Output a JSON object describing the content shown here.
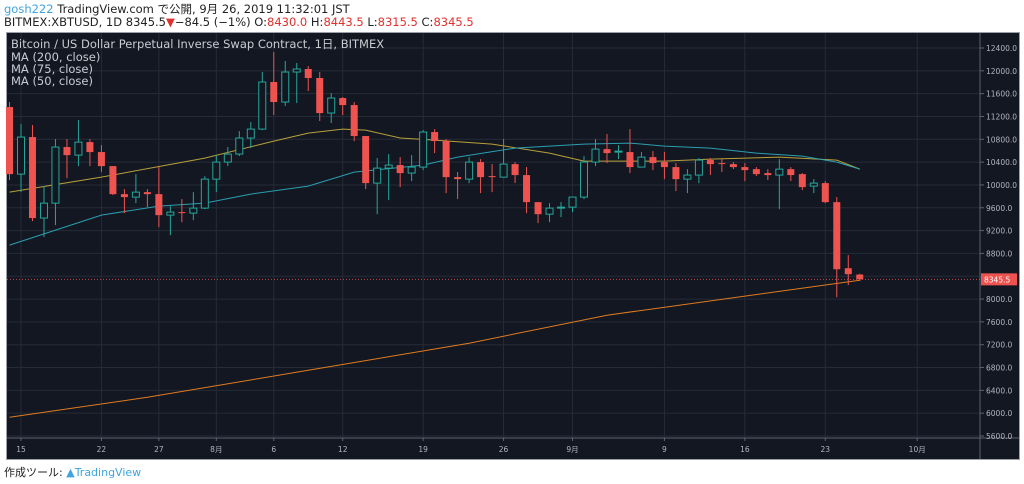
{
  "header": {
    "user": "gosh222",
    "published": "TradingView.com で公開, 9月 26, 2019 11:32:01 JST",
    "symbol_line": "BITMEX:XBTUSD, 1D 8345.5",
    "down_arrow": "▼",
    "change": "−84.5 (−1%)",
    "o_label": " O:",
    "o_value": "8430.0",
    "h_label": " H:",
    "h_value": "8443.5",
    "l_label": " L:",
    "l_value": "8315.5",
    "c_label": " C:",
    "c_value": "8345.5"
  },
  "legend": {
    "title": "Bitcoin / US Dollar Perpetual Inverse Swap Contract, 1日, BITMEX",
    "ma200": "MA (200, close)",
    "ma75": "MA (75, close)",
    "ma50": "MA (50, close)"
  },
  "footer": {
    "made_with": "作成ツール:",
    "brand": "TradingView"
  },
  "colors": {
    "up": "#26a69a",
    "down": "#ef5350",
    "ma200": "#e07b1f",
    "ma75": "#b8a03a",
    "ma50": "#2a9fb0",
    "bg": "#131722"
  },
  "chart_data": {
    "type": "candlestick",
    "title": "Bitcoin / US Dollar Perpetual Inverse Swap Contract, 1日, BITMEX",
    "ylim": [
      5600,
      12400
    ],
    "yticks": [
      "12400.0",
      "12000.0",
      "11600.0",
      "11200.0",
      "10800.0",
      "10400.0",
      "10000.0",
      "9600.0",
      "9200.0",
      "8800.0",
      "8000.0",
      "7600.0",
      "7200.0",
      "6800.0",
      "6400.0",
      "6000.0",
      "5600.0"
    ],
    "ytick_values": [
      12400,
      12000,
      11600,
      11200,
      10800,
      10400,
      10000,
      9600,
      9200,
      8800,
      8000,
      7600,
      7200,
      6800,
      6400,
      6000,
      5600
    ],
    "last_price_label": "8345.5",
    "last_price": 8345.5,
    "xticks": [
      {
        "label": "15",
        "index": 1
      },
      {
        "label": "22",
        "index": 8
      },
      {
        "label": "27",
        "index": 13
      },
      {
        "label": "8月",
        "index": 18
      },
      {
        "label": "6",
        "index": 23
      },
      {
        "label": "12",
        "index": 29
      },
      {
        "label": "19",
        "index": 36
      },
      {
        "label": "26",
        "index": 43
      },
      {
        "label": "9月",
        "index": 49
      },
      {
        "label": "9",
        "index": 57
      },
      {
        "label": "16",
        "index": 64
      },
      {
        "label": "23",
        "index": 71
      },
      {
        "label": "10月",
        "index": 79
      }
    ],
    "ohlc": [
      [
        11365,
        11453,
        10085,
        10190
      ],
      [
        10190,
        11067,
        9874,
        10839
      ],
      [
        10839,
        11050,
        9366,
        9420
      ],
      [
        9420,
        9980,
        9085,
        9681
      ],
      [
        9681,
        10804,
        9296,
        10664
      ],
      [
        10664,
        10804,
        10120,
        10523
      ],
      [
        10523,
        11137,
        10330,
        10751
      ],
      [
        10751,
        10804,
        10330,
        10576
      ],
      [
        10576,
        10699,
        10225,
        10330
      ],
      [
        10330,
        10330,
        9822,
        9839
      ],
      [
        9839,
        9927,
        9506,
        9787
      ],
      [
        9787,
        10190,
        9681,
        9874
      ],
      [
        9874,
        9927,
        9611,
        9839
      ],
      [
        9839,
        10313,
        9261,
        9471
      ],
      [
        9471,
        9629,
        9120,
        9524
      ],
      [
        9524,
        9752,
        9348,
        9506
      ],
      [
        9506,
        9874,
        9383,
        9594
      ],
      [
        9594,
        10155,
        9576,
        10102
      ],
      [
        10102,
        10523,
        9874,
        10401
      ],
      [
        10401,
        10664,
        10330,
        10541
      ],
      [
        10541,
        10944,
        10506,
        10822
      ],
      [
        10822,
        11102,
        10646,
        10979
      ],
      [
        10979,
        11979,
        10962,
        11804
      ],
      [
        11804,
        12330,
        11225,
        11453
      ],
      [
        11453,
        12172,
        11383,
        11979
      ],
      [
        11979,
        12137,
        11435,
        12032
      ],
      [
        12032,
        12084,
        11646,
        11874
      ],
      [
        11874,
        11979,
        11120,
        11260
      ],
      [
        11260,
        11611,
        11085,
        11523
      ],
      [
        11523,
        11541,
        11225,
        11400
      ],
      [
        11400,
        11453,
        10769,
        10857
      ],
      [
        10857,
        10857,
        9927,
        10032
      ],
      [
        10032,
        10471,
        9488,
        10295
      ],
      [
        10295,
        10541,
        9734,
        10348
      ],
      [
        10348,
        10488,
        9962,
        10208
      ],
      [
        10208,
        10523,
        10067,
        10313
      ],
      [
        10313,
        10962,
        10260,
        10927
      ],
      [
        10927,
        10979,
        10558,
        10769
      ],
      [
        10769,
        10804,
        9857,
        10137
      ],
      [
        10137,
        10225,
        9752,
        10102
      ],
      [
        10102,
        10488,
        10032,
        10401
      ],
      [
        10401,
        10453,
        9857,
        10137
      ],
      [
        10155,
        10365,
        9874,
        10137
      ],
      [
        10137,
        10804,
        10137,
        10365
      ],
      [
        10365,
        10401,
        10032,
        10173
      ],
      [
        10173,
        10313,
        9506,
        9699
      ],
      [
        9699,
        9699,
        9331,
        9488
      ],
      [
        9488,
        9681,
        9348,
        9594
      ],
      [
        9594,
        9699,
        9436,
        9611
      ],
      [
        9611,
        9787,
        9524,
        9787
      ],
      [
        9787,
        10506,
        9752,
        10401
      ],
      [
        10401,
        10804,
        10330,
        10628
      ],
      [
        10628,
        10892,
        10383,
        10558
      ],
      [
        10576,
        10699,
        10453,
        10593
      ],
      [
        10576,
        10979,
        10208,
        10313
      ],
      [
        10313,
        10576,
        10313,
        10488
      ],
      [
        10488,
        10593,
        10260,
        10383
      ],
      [
        10401,
        10576,
        10102,
        10313
      ],
      [
        10313,
        10383,
        9892,
        10102
      ],
      [
        10102,
        10277,
        9857,
        10173
      ],
      [
        10173,
        10471,
        10032,
        10436
      ],
      [
        10436,
        10471,
        10173,
        10365
      ],
      [
        10383,
        10453,
        10225,
        10365
      ],
      [
        10365,
        10401,
        10277,
        10313
      ],
      [
        10313,
        10383,
        10067,
        10260
      ],
      [
        10277,
        10313,
        10155,
        10190
      ],
      [
        10208,
        10277,
        10085,
        10173
      ],
      [
        10173,
        10453,
        9576,
        10277
      ],
      [
        10277,
        10313,
        10067,
        10173
      ],
      [
        10190,
        10208,
        9909,
        9962
      ],
      [
        9980,
        10102,
        9857,
        10032
      ],
      [
        10032,
        10067,
        9681,
        9699
      ],
      [
        9699,
        9787,
        8033,
        8523
      ],
      [
        8541,
        8770,
        8243,
        8436
      ],
      [
        8430,
        8443.5,
        8315.5,
        8345.5
      ]
    ],
    "series": [
      {
        "name": "MA (200, close)",
        "points": [
          [
            0,
            5928
          ],
          [
            12,
            6279
          ],
          [
            26,
            6752
          ],
          [
            40,
            7226
          ],
          [
            52,
            7717
          ],
          [
            74,
            8331
          ]
        ]
      },
      {
        "name": "MA (75, close)",
        "points": [
          [
            0,
            9874
          ],
          [
            8,
            10137
          ],
          [
            17,
            10471
          ],
          [
            23,
            10769
          ],
          [
            26,
            10909
          ],
          [
            29,
            10979
          ],
          [
            31,
            10962
          ],
          [
            34,
            10822
          ],
          [
            37,
            10786
          ],
          [
            42,
            10716
          ],
          [
            47,
            10558
          ],
          [
            50,
            10418
          ],
          [
            57,
            10418
          ],
          [
            61,
            10453
          ],
          [
            67,
            10488
          ],
          [
            72,
            10436
          ],
          [
            74,
            10277
          ]
        ]
      },
      {
        "name": "MA (50, close)",
        "points": [
          [
            0,
            8945
          ],
          [
            8,
            9471
          ],
          [
            13,
            9629
          ],
          [
            17,
            9681
          ],
          [
            21,
            9839
          ],
          [
            26,
            9980
          ],
          [
            30,
            10225
          ],
          [
            36,
            10348
          ],
          [
            39,
            10488
          ],
          [
            44,
            10646
          ],
          [
            50,
            10716
          ],
          [
            54,
            10734
          ],
          [
            57,
            10681
          ],
          [
            61,
            10646
          ],
          [
            65,
            10558
          ],
          [
            69,
            10506
          ],
          [
            72,
            10401
          ],
          [
            74,
            10277
          ]
        ]
      }
    ]
  }
}
